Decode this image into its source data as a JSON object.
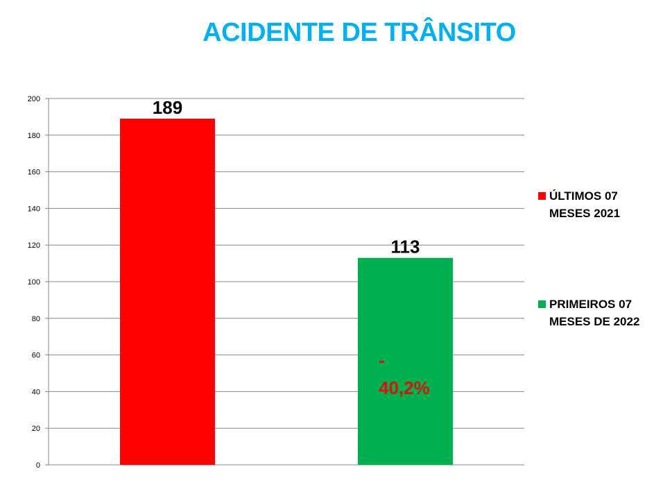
{
  "chart_data": {
    "type": "bar",
    "title": "ACIDENTE DE TRÂNSITO",
    "xlabel": "",
    "ylabel": "",
    "ylim": [
      0,
      200
    ],
    "yticks": [
      "0",
      "20",
      "40",
      "60",
      "80",
      "100",
      "120",
      "140",
      "160",
      "180",
      "200"
    ],
    "grid": true,
    "legend_position": "right",
    "series": [
      {
        "name": "ÚLTIMOS 07 MESES 2021",
        "values": [
          189
        ],
        "value_label": "189",
        "color": "#ff0000"
      },
      {
        "name": "PRIMEIROS 07 MESES DE 2022",
        "values": [
          113
        ],
        "value_label": "113",
        "color": "#00b050"
      }
    ],
    "annotation": {
      "line1": "-",
      "line2": "40,2%",
      "color": "#d9140a"
    }
  }
}
